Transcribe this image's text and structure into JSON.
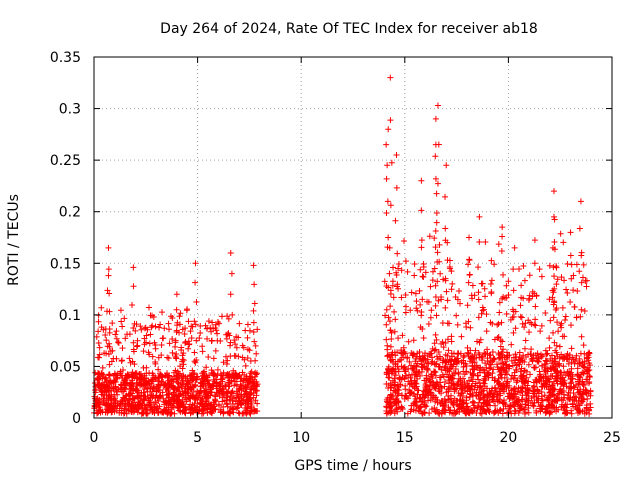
{
  "chart_data": {
    "type": "scatter",
    "title": "Day 264 of 2024, Rate Of TEC Index for receiver ab18",
    "xlabel": "GPS time / hours",
    "ylabel": "ROTI / TECUs",
    "xlim": [
      0,
      25
    ],
    "ylim": [
      0,
      0.35
    ],
    "x_ticks": [
      0,
      5,
      10,
      15,
      20,
      25
    ],
    "x_tick_labels": [
      "0",
      "5",
      "10",
      "15",
      "20",
      "25"
    ],
    "y_ticks": [
      0,
      0.05,
      0.1,
      0.15,
      0.2,
      0.25,
      0.3,
      0.35
    ],
    "y_tick_labels": [
      "0",
      "0.05",
      "0.1",
      "0.15",
      "0.2",
      "0.25",
      "0.3",
      "0.35"
    ],
    "grid": true,
    "marker": "+",
    "color": "#ff0000",
    "segments": [
      {
        "start": 0.0,
        "end": 7.9,
        "baseline_max": 0.04,
        "typical_peak": 0.09
      },
      {
        "start": 14.1,
        "end": 24.0,
        "baseline_max": 0.06,
        "typical_peak": 0.15
      }
    ],
    "peaks": [
      {
        "x": 0.7,
        "y": 0.165
      },
      {
        "x": 0.7,
        "y": 0.138
      },
      {
        "x": 1.9,
        "y": 0.146
      },
      {
        "x": 4.0,
        "y": 0.12
      },
      {
        "x": 4.9,
        "y": 0.15
      },
      {
        "x": 6.6,
        "y": 0.16
      },
      {
        "x": 7.7,
        "y": 0.148
      },
      {
        "x": 14.3,
        "y": 0.33
      },
      {
        "x": 14.2,
        "y": 0.28
      },
      {
        "x": 14.1,
        "y": 0.265
      },
      {
        "x": 14.6,
        "y": 0.255
      },
      {
        "x": 16.6,
        "y": 0.303
      },
      {
        "x": 16.5,
        "y": 0.29
      },
      {
        "x": 16.5,
        "y": 0.265
      },
      {
        "x": 17.0,
        "y": 0.245
      },
      {
        "x": 15.8,
        "y": 0.23
      },
      {
        "x": 18.6,
        "y": 0.195
      },
      {
        "x": 22.2,
        "y": 0.22
      },
      {
        "x": 22.2,
        "y": 0.195
      },
      {
        "x": 23.5,
        "y": 0.21
      },
      {
        "x": 23.0,
        "y": 0.18
      },
      {
        "x": 19.7,
        "y": 0.185
      },
      {
        "x": 18.1,
        "y": 0.175
      },
      {
        "x": 20.3,
        "y": 0.165
      }
    ]
  }
}
